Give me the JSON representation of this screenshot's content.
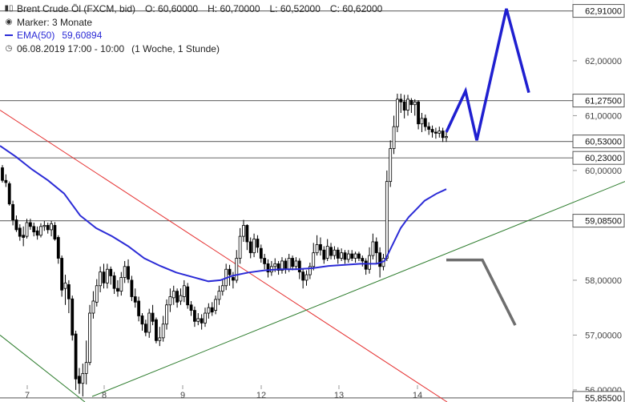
{
  "header": {
    "instrument": "Brent Crude Öl (FXCM, bid)",
    "open": "O: 60,60000",
    "high": "H: 60,70000",
    "low": "L: 60,52000",
    "close": "C: 60,62000",
    "marker": "Marker: 3 Monate",
    "ema": "EMA(50)",
    "ema_value": "59,60894",
    "datetime": "06.08.2019 17:00 - 10:00",
    "period": "(1 Woche, 1 Stunde)"
  },
  "colors": {
    "candle": "#000000",
    "ema": "#2b2bd6",
    "resistance_line": "#e53030",
    "support_line": "#2e7d2e",
    "level_line": "#777777",
    "projection_up": "#1f1fd0",
    "projection_down": "#6e6e6e"
  },
  "chart_data": {
    "type": "candlestick",
    "ylim": [
      55.78,
      63.05
    ],
    "y_ticks": [
      {
        "value": 56.0,
        "label": "56,00000"
      },
      {
        "value": 57.0,
        "label": "57,00000"
      },
      {
        "value": 58.0,
        "label": "58,00000"
      },
      {
        "value": 60.0,
        "label": "60,00000"
      },
      {
        "value": 61.0,
        "label": "61,00000"
      },
      {
        "value": 62.0,
        "label": "62,00000"
      }
    ],
    "x_ticks": [
      "7",
      "8",
      "9",
      "12",
      "13",
      "14"
    ],
    "levels": [
      {
        "value": 62.91,
        "label": "62,91000"
      },
      {
        "value": 61.275,
        "label": "61,27500"
      },
      {
        "value": 60.53,
        "label": "60,53000"
      },
      {
        "value": 60.23,
        "label": "60,23000"
      },
      {
        "value": 59.085,
        "label": "59,08500"
      },
      {
        "value": 55.855,
        "label": "55,85500"
      }
    ],
    "candles": [
      [
        60.05,
        59.82,
        60.1,
        59.78
      ],
      [
        59.82,
        59.78,
        59.93,
        59.7
      ],
      [
        59.76,
        59.39,
        59.8,
        59.36
      ],
      [
        59.38,
        59.1,
        59.45,
        59.0
      ],
      [
        59.1,
        58.92,
        59.18,
        58.88
      ],
      [
        58.95,
        58.8,
        59.02,
        58.72
      ],
      [
        58.82,
        58.78,
        58.98,
        58.62
      ],
      [
        58.8,
        59.05,
        59.12,
        58.76
      ],
      [
        59.05,
        58.98,
        59.12,
        58.92
      ],
      [
        58.98,
        58.88,
        59.05,
        58.8
      ],
      [
        58.9,
        58.82,
        58.98,
        58.74
      ],
      [
        58.82,
        58.98,
        59.04,
        58.78
      ],
      [
        58.98,
        59.0,
        59.08,
        58.9
      ],
      [
        59.0,
        58.92,
        59.05,
        58.85
      ],
      [
        58.92,
        59.03,
        59.08,
        58.8
      ],
      [
        59.0,
        58.75,
        59.06,
        58.72
      ],
      [
        58.78,
        58.4,
        58.82,
        58.3
      ],
      [
        58.4,
        57.82,
        58.45,
        57.7
      ],
      [
        57.85,
        57.95,
        58.1,
        57.55
      ],
      [
        57.92,
        57.66,
        58.0,
        57.4
      ],
      [
        57.66,
        57.0,
        57.72,
        56.9
      ],
      [
        57.02,
        56.2,
        57.08,
        56.0
      ],
      [
        56.25,
        56.12,
        56.4,
        55.93
      ],
      [
        56.12,
        56.3,
        56.48,
        55.88
      ],
      [
        56.3,
        56.5,
        56.9,
        56.1
      ],
      [
        56.5,
        57.4,
        57.55,
        56.45
      ],
      [
        57.4,
        57.62,
        57.8,
        57.3
      ],
      [
        57.6,
        57.9,
        58.02,
        57.52
      ],
      [
        57.9,
        58.15,
        58.25,
        57.78
      ],
      [
        58.15,
        57.95,
        58.3,
        57.85
      ],
      [
        57.95,
        58.2,
        58.3,
        57.85
      ],
      [
        58.2,
        58.08,
        58.25,
        57.92
      ],
      [
        58.08,
        57.85,
        58.15,
        57.75
      ],
      [
        57.85,
        57.8,
        58.0,
        57.7
      ],
      [
        57.8,
        58.05,
        58.15,
        57.72
      ],
      [
        58.05,
        58.25,
        58.35,
        57.95
      ],
      [
        58.25,
        58.02,
        58.38,
        57.95
      ],
      [
        58.0,
        57.7,
        58.08,
        57.62
      ],
      [
        57.7,
        57.6,
        57.85,
        57.5
      ],
      [
        57.62,
        57.35,
        57.7,
        57.25
      ],
      [
        57.35,
        57.2,
        57.4,
        57.08
      ],
      [
        57.2,
        57.05,
        57.28,
        56.98
      ],
      [
        57.05,
        57.4,
        57.48,
        56.95
      ],
      [
        57.4,
        57.25,
        57.55,
        57.18
      ],
      [
        57.28,
        56.9,
        57.32,
        56.85
      ],
      [
        56.9,
        56.95,
        57.15,
        56.8
      ],
      [
        56.95,
        57.2,
        57.35,
        56.88
      ],
      [
        57.2,
        57.55,
        57.65,
        57.1
      ],
      [
        57.55,
        57.7,
        57.85,
        57.42
      ],
      [
        57.68,
        57.8,
        57.9,
        57.55
      ],
      [
        57.8,
        57.6,
        57.85,
        57.5
      ],
      [
        57.62,
        57.72,
        57.85,
        57.55
      ],
      [
        57.7,
        57.9,
        58.0,
        57.6
      ],
      [
        57.88,
        57.55,
        57.95,
        57.48
      ],
      [
        57.55,
        57.45,
        57.62,
        57.35
      ],
      [
        57.45,
        57.25,
        57.52,
        57.15
      ],
      [
        57.25,
        57.3,
        57.4,
        57.18
      ],
      [
        57.3,
        57.22,
        57.38,
        57.1
      ],
      [
        57.22,
        57.4,
        57.5,
        57.15
      ],
      [
        57.4,
        57.5,
        57.58,
        57.3
      ],
      [
        57.5,
        57.42,
        57.6,
        57.35
      ],
      [
        57.45,
        57.65,
        57.72,
        57.38
      ],
      [
        57.65,
        57.8,
        57.9,
        57.55
      ],
      [
        57.8,
        57.9,
        58.0,
        57.72
      ],
      [
        57.9,
        58.2,
        58.3,
        57.82
      ],
      [
        58.2,
        58.1,
        58.28,
        57.9
      ],
      [
        58.05,
        58.0,
        58.15,
        57.85
      ],
      [
        58.0,
        58.4,
        58.55,
        57.95
      ],
      [
        58.4,
        58.8,
        58.95,
        58.3
      ],
      [
        58.8,
        59.0,
        59.1,
        58.7
      ],
      [
        59.0,
        58.7,
        59.02,
        58.55
      ],
      [
        58.7,
        58.5,
        58.78,
        58.4
      ],
      [
        58.5,
        58.75,
        58.85,
        58.42
      ],
      [
        58.75,
        58.6,
        58.82,
        58.5
      ],
      [
        58.58,
        58.4,
        58.65,
        58.32
      ],
      [
        58.4,
        58.3,
        58.48,
        58.2
      ],
      [
        58.3,
        58.15,
        58.38,
        58.05
      ],
      [
        58.15,
        58.25,
        58.35,
        58.08
      ],
      [
        58.25,
        58.3,
        58.4,
        58.15
      ],
      [
        58.3,
        58.18,
        58.35,
        58.1
      ],
      [
        58.18,
        58.35,
        58.42,
        58.12
      ],
      [
        58.35,
        58.2,
        58.4,
        58.12
      ],
      [
        58.2,
        58.4,
        58.48,
        58.15
      ],
      [
        58.4,
        58.25,
        58.45,
        58.18
      ],
      [
        58.25,
        58.35,
        58.42,
        58.2
      ],
      [
        58.35,
        58.15,
        58.4,
        58.02
      ],
      [
        58.15,
        58.0,
        58.2,
        57.85
      ],
      [
        58.0,
        58.1,
        58.18,
        57.9
      ],
      [
        58.1,
        58.25,
        58.32,
        58.02
      ],
      [
        58.25,
        58.5,
        58.68,
        58.18
      ],
      [
        58.5,
        58.65,
        58.82,
        58.45
      ],
      [
        58.65,
        58.55,
        58.78,
        58.45
      ],
      [
        58.55,
        58.38,
        58.62,
        58.3
      ],
      [
        58.4,
        58.62,
        58.75,
        58.35
      ],
      [
        58.6,
        58.45,
        58.68,
        58.38
      ],
      [
        58.45,
        58.55,
        58.62,
        58.38
      ],
      [
        58.55,
        58.4,
        58.6,
        58.3
      ],
      [
        58.4,
        58.5,
        58.58,
        58.35
      ],
      [
        58.5,
        58.38,
        58.55,
        58.3
      ],
      [
        58.38,
        58.48,
        58.55,
        58.32
      ],
      [
        58.48,
        58.4,
        58.55,
        58.35
      ],
      [
        58.4,
        58.48,
        58.52,
        58.32
      ],
      [
        58.48,
        58.4,
        58.52,
        58.35
      ],
      [
        58.4,
        58.35,
        58.45,
        58.25
      ],
      [
        58.35,
        58.2,
        58.4,
        58.1
      ],
      [
        58.2,
        58.45,
        58.6,
        58.12
      ],
      [
        58.45,
        58.7,
        58.85,
        58.38
      ],
      [
        58.7,
        58.5,
        58.78,
        58.3
      ],
      [
        58.5,
        58.25,
        58.6,
        58.05
      ],
      [
        58.25,
        58.4,
        58.48,
        58.18
      ],
      [
        58.4,
        59.8,
        60.0,
        58.35
      ],
      [
        59.8,
        60.4,
        60.55,
        59.7
      ],
      [
        60.4,
        60.8,
        61.0,
        60.3
      ],
      [
        60.8,
        61.3,
        61.4,
        60.7
      ],
      [
        61.3,
        61.25,
        61.4,
        61.05
      ],
      [
        61.25,
        61.1,
        61.38,
        60.95
      ],
      [
        61.1,
        61.3,
        61.38,
        61.0
      ],
      [
        61.28,
        61.2,
        61.32,
        61.05
      ],
      [
        61.2,
        61.25,
        61.3,
        61.0
      ],
      [
        61.25,
        60.85,
        61.28,
        60.75
      ],
      [
        60.85,
        60.95,
        61.05,
        60.7
      ],
      [
        60.95,
        60.8,
        61.02,
        60.72
      ],
      [
        60.8,
        60.75,
        60.88,
        60.65
      ],
      [
        60.75,
        60.7,
        60.82,
        60.6
      ],
      [
        60.7,
        60.68,
        60.78,
        60.58
      ],
      [
        60.68,
        60.72,
        60.8,
        60.6
      ],
      [
        60.72,
        60.6,
        60.78,
        60.52
      ],
      [
        60.6,
        60.62,
        60.7,
        60.52
      ]
    ],
    "ema50": [
      [
        0,
        60.45
      ],
      [
        20,
        60.25
      ],
      [
        40,
        60.02
      ],
      [
        60,
        59.82
      ],
      [
        80,
        59.58
      ],
      [
        100,
        59.18
      ],
      [
        120,
        58.95
      ],
      [
        140,
        58.8
      ],
      [
        160,
        58.62
      ],
      [
        180,
        58.4
      ],
      [
        200,
        58.26
      ],
      [
        220,
        58.14
      ],
      [
        240,
        58.06
      ],
      [
        260,
        57.98
      ],
      [
        275,
        58.0
      ],
      [
        290,
        58.08
      ],
      [
        310,
        58.14
      ],
      [
        330,
        58.18
      ],
      [
        350,
        58.2
      ],
      [
        370,
        58.2
      ],
      [
        390,
        58.22
      ],
      [
        410,
        58.26
      ],
      [
        430,
        58.28
      ],
      [
        450,
        58.3
      ],
      [
        470,
        58.3
      ],
      [
        480,
        58.35
      ],
      [
        490,
        58.65
      ],
      [
        500,
        58.95
      ],
      [
        510,
        59.15
      ],
      [
        520,
        59.3
      ],
      [
        530,
        59.45
      ],
      [
        545,
        59.58
      ],
      [
        557,
        59.66
      ]
    ],
    "trend_lines": [
      {
        "name": "resistance",
        "x1": 0,
        "y1": 61.1,
        "x2": 558,
        "y2": 55.78
      },
      {
        "name": "support",
        "x1": 115,
        "y1": 55.88,
        "x2": 780,
        "y2": 59.8
      },
      {
        "name": "lower",
        "x1": 0,
        "y1": 57.0,
        "x2": 106,
        "y2": 55.78
      }
    ],
    "projection_up": [
      [
        557,
        60.7
      ],
      [
        581,
        61.45
      ],
      [
        595,
        60.55
      ],
      [
        632,
        62.95
      ],
      [
        660,
        61.42
      ]
    ],
    "projection_down": [
      [
        557,
        58.37
      ],
      [
        602,
        58.37
      ],
      [
        643,
        57.18
      ]
    ]
  }
}
